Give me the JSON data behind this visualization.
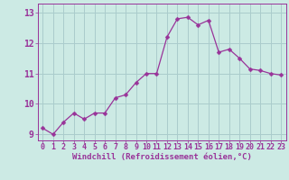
{
  "x": [
    0,
    1,
    2,
    3,
    4,
    5,
    6,
    7,
    8,
    9,
    10,
    11,
    12,
    13,
    14,
    15,
    16,
    17,
    18,
    19,
    20,
    21,
    22,
    23
  ],
  "y": [
    9.2,
    9.0,
    9.4,
    9.7,
    9.5,
    9.7,
    9.7,
    10.2,
    10.3,
    10.7,
    11.0,
    11.0,
    12.2,
    12.8,
    12.85,
    12.6,
    12.75,
    11.7,
    11.8,
    11.5,
    11.15,
    11.1,
    11.0,
    10.95
  ],
  "line_color": "#993399",
  "marker": "D",
  "marker_size": 2.5,
  "bg_color": "#cceae4",
  "grid_color": "#aacccc",
  "xlabel": "Windchill (Refroidissement éolien,°C)",
  "ylabel": "",
  "title": "",
  "ylim": [
    8.8,
    13.3
  ],
  "xlim": [
    -0.5,
    23.5
  ],
  "yticks": [
    9,
    10,
    11,
    12,
    13
  ],
  "xticks": [
    0,
    1,
    2,
    3,
    4,
    5,
    6,
    7,
    8,
    9,
    10,
    11,
    12,
    13,
    14,
    15,
    16,
    17,
    18,
    19,
    20,
    21,
    22,
    23
  ],
  "tick_color": "#993399",
  "label_color": "#993399",
  "xlabel_fontsize": 6.5,
  "tick_fontsize": 6.0,
  "ytick_fontsize": 7.0
}
